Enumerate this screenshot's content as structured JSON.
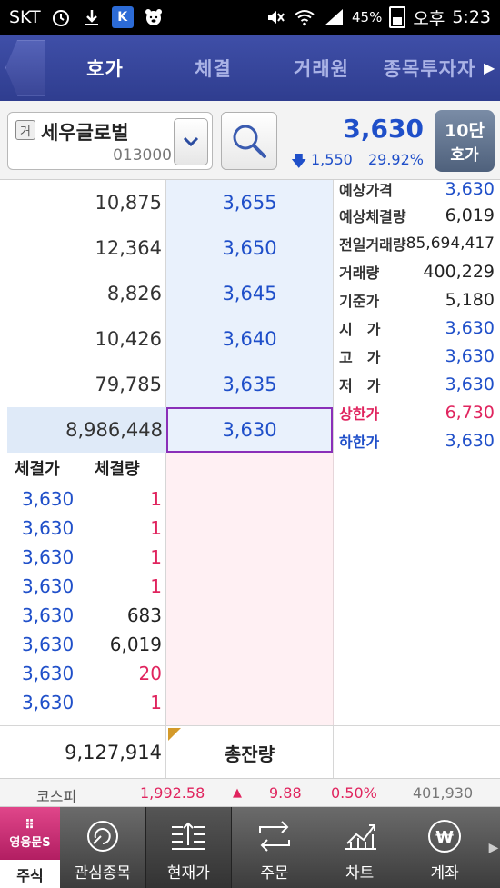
{
  "status_bar": {
    "carrier": "SKT",
    "battery": "45%",
    "ampm": "오후",
    "time": "5:23",
    "icons": [
      "alarm-icon",
      "download-icon",
      "app-icon",
      "bear-icon",
      "mute-icon",
      "wifi-icon",
      "signal-icon",
      "battery-icon"
    ]
  },
  "tabs": [
    {
      "label": "호가",
      "active": true
    },
    {
      "label": "체결",
      "active": false
    },
    {
      "label": "거래원",
      "active": false
    },
    {
      "label": "종목투자자",
      "active": false
    }
  ],
  "stock": {
    "market_badge": "거",
    "name": "세우글로벌",
    "code": "013000",
    "price": "3,630",
    "change": "1,550",
    "change_pct": "29.92%",
    "level_button": [
      "10단",
      "호가"
    ]
  },
  "order_book": {
    "asks": [
      {
        "qty": "10,875",
        "price": "3,655"
      },
      {
        "qty": "12,364",
        "price": "3,650"
      },
      {
        "qty": "8,826",
        "price": "3,645"
      },
      {
        "qty": "10,426",
        "price": "3,640"
      },
      {
        "qty": "79,785",
        "price": "3,635"
      },
      {
        "qty": "8,986,448",
        "price": "3,630"
      }
    ]
  },
  "info": [
    {
      "label": "예상가격",
      "value": "3,630"
    },
    {
      "label": "예상체결량",
      "value": "6,019"
    },
    {
      "label": "전일거래량",
      "value": "85,694,417"
    },
    {
      "label": "거래량",
      "value": "400,229"
    },
    {
      "label": "기준가",
      "value": "5,180"
    },
    {
      "label": "시　가",
      "value": "3,630"
    },
    {
      "label": "고　가",
      "value": "3,630"
    },
    {
      "label": "저　가",
      "value": "3,630"
    },
    {
      "label": "상한가",
      "value": "6,730"
    },
    {
      "label": "하한가",
      "value": "3,630"
    }
  ],
  "ticks": {
    "header_price": "체결가",
    "header_volume": "체결량",
    "rows": [
      {
        "price": "3,630",
        "volume": "1"
      },
      {
        "price": "3,630",
        "volume": "1"
      },
      {
        "price": "3,630",
        "volume": "1"
      },
      {
        "price": "3,630",
        "volume": "1"
      },
      {
        "price": "3,630",
        "volume": "683"
      },
      {
        "price": "3,630",
        "volume": "6,019"
      },
      {
        "price": "3,630",
        "volume": "20"
      },
      {
        "price": "3,630",
        "volume": "1"
      }
    ]
  },
  "total": {
    "qty": "9,127,914",
    "label": "총잔량"
  },
  "index": {
    "name": "코스피",
    "value": "1,992.58",
    "arrow": "▲",
    "change": "9.88",
    "pct": "0.50%",
    "volume": "401,930"
  },
  "nav": {
    "logo_dots": "⠿",
    "logo_brand": "영웅문S",
    "logo_label": "주식",
    "items": [
      {
        "label": "관심종목",
        "icon": "watchlist-icon",
        "active": false
      },
      {
        "label": "현재가",
        "icon": "current-price-icon",
        "active": true
      },
      {
        "label": "주문",
        "icon": "order-icon",
        "active": false
      },
      {
        "label": "차트",
        "icon": "chart-icon",
        "active": false
      },
      {
        "label": "계좌",
        "icon": "account-icon",
        "active": false
      }
    ]
  },
  "colors": {
    "accent_blue": "#1f4fc9",
    "accent_red": "#e0245e",
    "header_blue": "#3f4fa8",
    "highlight_purple": "#8a2fb8"
  }
}
